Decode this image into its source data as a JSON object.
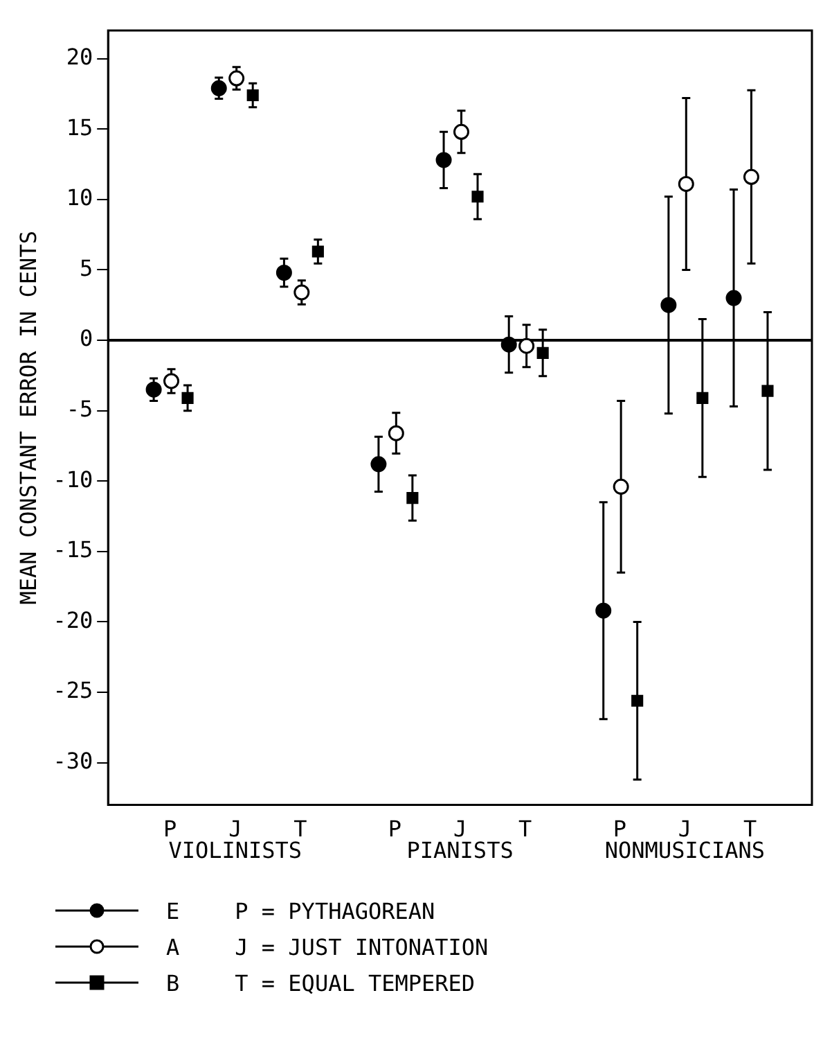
{
  "chart_data": {
    "type": "scatter",
    "ylabel": "MEAN CONSTANT ERROR IN CENTS",
    "categories": [
      "P",
      "J",
      "T",
      "P",
      "J",
      "T",
      "P",
      "J",
      "T"
    ],
    "series": [
      {
        "name": "E",
        "color": "#000000",
        "marker": "circle",
        "values": [
          -3.5,
          17.9,
          4.8,
          -8.8,
          12.8,
          -0.3,
          -19.2,
          2.5,
          3.0
        ],
        "errors": [
          0.8,
          0.75,
          1,
          1.95,
          2,
          2,
          7.7,
          7.7,
          7.7
        ]
      },
      {
        "name": "A",
        "color": "#ffffff",
        "marker": "circle",
        "values": [
          -2.9,
          18.6,
          3.4,
          -6.6,
          14.8,
          -0.4,
          -10.4,
          11.1,
          11.6
        ],
        "errors": [
          0.85,
          0.8,
          0.85,
          1.45,
          1.5,
          1.5,
          6.1,
          6.1,
          6.15
        ]
      },
      {
        "name": "B",
        "color": "#000000",
        "marker": "square",
        "values": [
          -4.1,
          17.4,
          6.3,
          -11.2,
          10.2,
          -0.9,
          -25.6,
          -4.1,
          -3.6
        ],
        "errors": [
          0.9,
          0.85,
          0.85,
          1.6,
          1.6,
          1.65,
          5.6,
          5.6,
          5.6
        ]
      }
    ],
    "ylim": [
      -33,
      22
    ],
    "yticks": [
      -30,
      -25,
      -20,
      -15,
      -10,
      -5,
      0,
      5,
      10,
      15,
      20
    ],
    "ref_lines": [
      {
        "axis": "y",
        "value": 0,
        "color": "#000000"
      }
    ],
    "grid": false,
    "legend": "bottom left",
    "annotations": [
      "VIOLINISTS",
      "PIANISTS",
      "NONMUSICIANS",
      "P = PYTHAGOREAN",
      "J = JUST INTONATION",
      "T = EQUAL TEMPERED"
    ]
  }
}
